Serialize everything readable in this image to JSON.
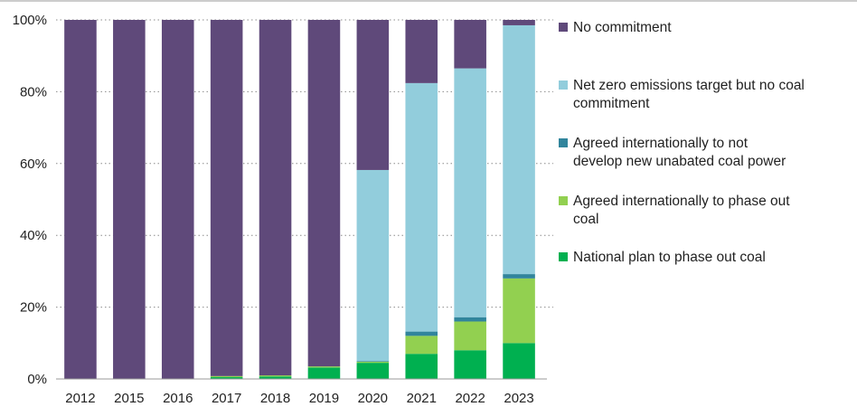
{
  "chart_data": {
    "type": "bar",
    "stacked": true,
    "categories": [
      "2012",
      "2015",
      "2016",
      "2017",
      "2018",
      "2019",
      "2020",
      "2021",
      "2022",
      "2023"
    ],
    "series": [
      {
        "name": "National plan to phase out coal",
        "color": "#00b050",
        "values": [
          0,
          0,
          0,
          0.5,
          0.7,
          3.2,
          4.5,
          7.0,
          8.0,
          10.0
        ]
      },
      {
        "name": "Agreed internationally to phase out coal",
        "color": "#92d050",
        "values": [
          0,
          0,
          0,
          0.3,
          0.3,
          0.3,
          0.3,
          5.0,
          8.0,
          18.0
        ]
      },
      {
        "name": "Agreed internationally to not develop new unabated coal power",
        "color": "#31859c",
        "values": [
          0,
          0,
          0,
          0,
          0,
          0,
          0.2,
          1.2,
          1.2,
          1.2
        ]
      },
      {
        "name": "Net zero emissions target but no coal commitment",
        "color": "#92cddc",
        "values": [
          0,
          0,
          0,
          0,
          0,
          0,
          53.2,
          69.2,
          69.3,
          69.3
        ]
      },
      {
        "name": "No commitment",
        "color": "#5f497a",
        "values": [
          100,
          100,
          100,
          99.2,
          99.0,
          96.5,
          41.8,
          17.6,
          13.5,
          1.5
        ]
      }
    ],
    "yticks": [
      "0%",
      "20%",
      "40%",
      "60%",
      "80%",
      "100%"
    ],
    "ylim": [
      0,
      100
    ],
    "grid": true,
    "legend_position": "right"
  },
  "legend": [
    {
      "lines": [
        "No commitment"
      ],
      "color": "#5f497a"
    },
    {
      "lines": [
        "Net zero emissions target but no coal",
        "commitment"
      ],
      "color": "#92cddc"
    },
    {
      "lines": [
        "Agreed internationally to not",
        "develop new unabated coal power"
      ],
      "color": "#31859c"
    },
    {
      "lines": [
        "Agreed internationally to phase out",
        "coal"
      ],
      "color": "#92d050"
    },
    {
      "lines": [
        "National plan to phase out coal"
      ],
      "color": "#00b050"
    }
  ]
}
